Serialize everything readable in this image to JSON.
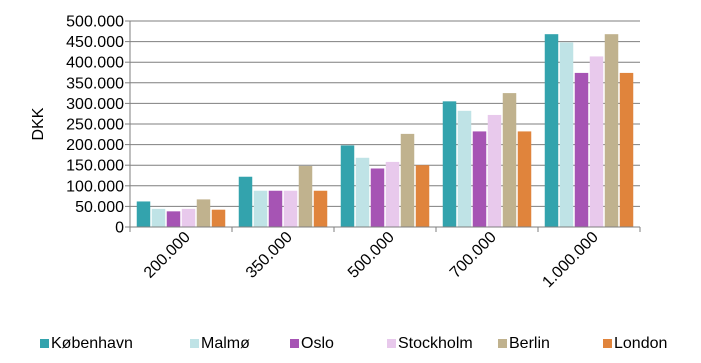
{
  "chart_data": {
    "type": "bar",
    "ylabel": "DKK",
    "xlabel": "",
    "ylim": [
      0,
      500000
    ],
    "yticks": [
      0,
      50000,
      100000,
      150000,
      200000,
      250000,
      300000,
      350000,
      400000,
      450000,
      500000
    ],
    "ytick_labels": [
      "0",
      "50.000",
      "100.000",
      "150.000",
      "200.000",
      "250.000",
      "300.000",
      "350.000",
      "400.000",
      "450.000",
      "500.000"
    ],
    "grid": "horizontal",
    "legend_position": "bottom",
    "categories": [
      "200.000",
      "350.000",
      "500.000",
      "700.000",
      "1.000.000"
    ],
    "series": [
      {
        "name": "København",
        "color": "#33A3AD",
        "values": [
          62000,
          122000,
          198000,
          305000,
          468000
        ]
      },
      {
        "name": "Malmø",
        "color": "#BFE3E6",
        "values": [
          44000,
          88000,
          168000,
          282000,
          448000
        ]
      },
      {
        "name": "Oslo",
        "color": "#A654B4",
        "values": [
          38000,
          88000,
          142000,
          232000,
          374000
        ]
      },
      {
        "name": "Stockholm",
        "color": "#E8C9EC",
        "values": [
          44000,
          88000,
          158000,
          272000,
          414000
        ]
      },
      {
        "name": "Berlin",
        "color": "#C0B28E",
        "values": [
          67000,
          148000,
          226000,
          325000,
          468000
        ]
      },
      {
        "name": "London",
        "color": "#E0843C",
        "values": [
          42000,
          88000,
          150000,
          232000,
          374000
        ]
      }
    ]
  }
}
